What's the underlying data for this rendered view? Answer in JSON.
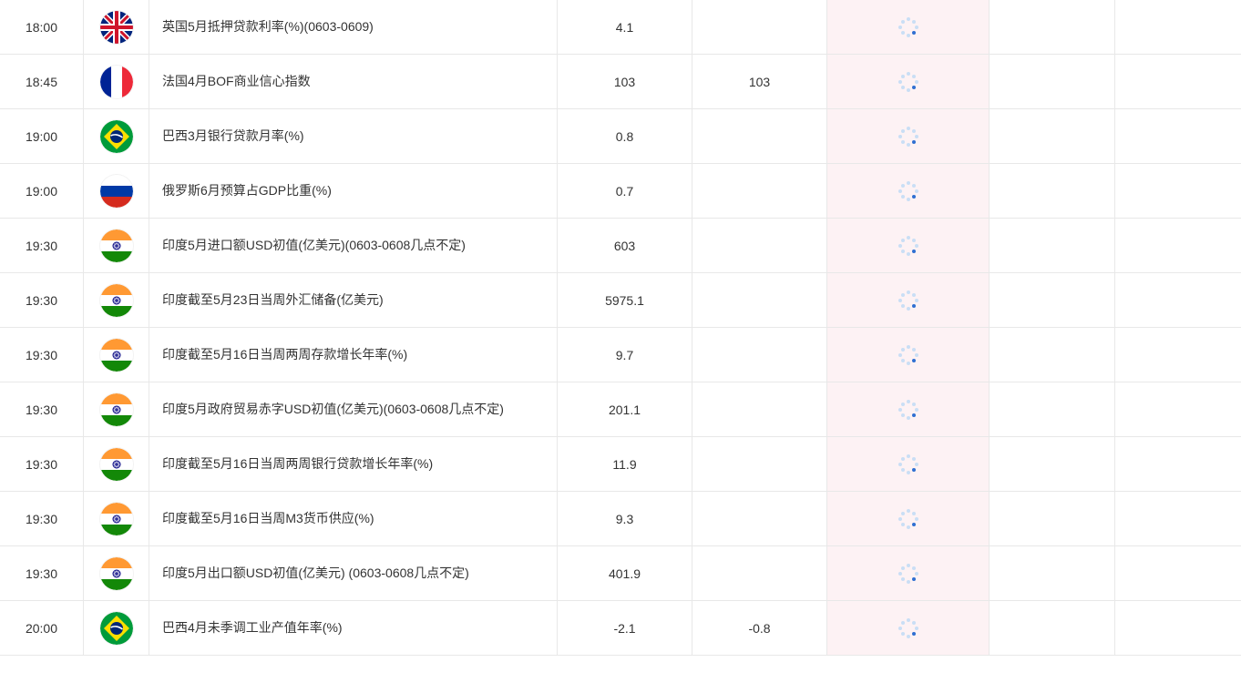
{
  "colors": {
    "border": "#e8e8e8",
    "text": "#333333",
    "impactBg": "#fdf2f4",
    "spinnerDot": "#c9def5",
    "spinnerHighlight": "#2f6fd1"
  },
  "columns": {
    "time_width": 92,
    "flag_width": 72,
    "desc_width": 448,
    "prev_width": 148,
    "fcst_width": 148,
    "impact_width": 178,
    "ext1_width": 138,
    "ext2_width": 138
  },
  "flags": {
    "uk": {
      "type": "uk"
    },
    "france": {
      "type": "france"
    },
    "brazil": {
      "type": "brazil"
    },
    "russia": {
      "type": "russia"
    },
    "india": {
      "type": "india"
    }
  },
  "rows": [
    {
      "time": "18:00",
      "flag": "uk",
      "desc": "英国5月抵押贷款利率(%)(0603-0609)",
      "prev": "4.1",
      "fcst": ""
    },
    {
      "time": "18:45",
      "flag": "france",
      "desc": "法国4月BOF商业信心指数",
      "prev": "103",
      "fcst": "103"
    },
    {
      "time": "19:00",
      "flag": "brazil",
      "desc": "巴西3月银行贷款月率(%)",
      "prev": "0.8",
      "fcst": ""
    },
    {
      "time": "19:00",
      "flag": "russia",
      "desc": "俄罗斯6月预算占GDP比重(%)",
      "prev": "0.7",
      "fcst": ""
    },
    {
      "time": "19:30",
      "flag": "india",
      "desc": "印度5月进口额USD初值(亿美元)(0603-0608几点不定)",
      "prev": "603",
      "fcst": ""
    },
    {
      "time": "19:30",
      "flag": "india",
      "desc": "印度截至5月23日当周外汇储备(亿美元)",
      "prev": "5975.1",
      "fcst": ""
    },
    {
      "time": "19:30",
      "flag": "india",
      "desc": "印度截至5月16日当周两周存款增长年率(%)",
      "prev": "9.7",
      "fcst": ""
    },
    {
      "time": "19:30",
      "flag": "india",
      "desc": "印度5月政府贸易赤字USD初值(亿美元)(0603-0608几点不定)",
      "prev": "201.1",
      "fcst": ""
    },
    {
      "time": "19:30",
      "flag": "india",
      "desc": "印度截至5月16日当周两周银行贷款增长年率(%)",
      "prev": "11.9",
      "fcst": ""
    },
    {
      "time": "19:30",
      "flag": "india",
      "desc": "印度截至5月16日当周M3货币供应(%)",
      "prev": "9.3",
      "fcst": ""
    },
    {
      "time": "19:30",
      "flag": "india",
      "desc": "印度5月出口额USD初值(亿美元) (0603-0608几点不定)",
      "prev": "401.9",
      "fcst": ""
    },
    {
      "time": "20:00",
      "flag": "brazil",
      "desc": "巴西4月未季调工业产值年率(%)",
      "prev": "-2.1",
      "fcst": "-0.8"
    }
  ]
}
